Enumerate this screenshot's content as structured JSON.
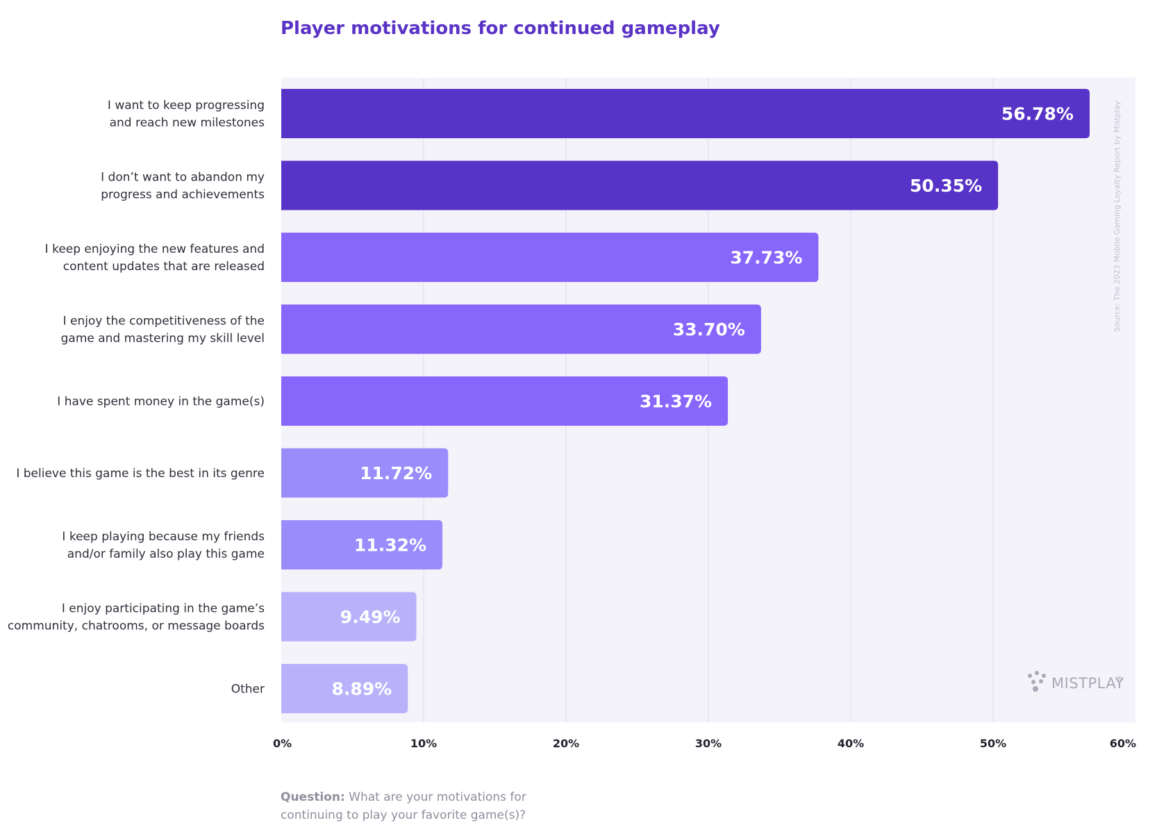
{
  "chart_data": {
    "type": "bar",
    "orientation": "horizontal",
    "title": "Player motivations for continued gameplay",
    "categories": [
      [
        "I want to keep progressing",
        "and reach new milestones"
      ],
      [
        "I don’t want to abandon my",
        "progress and achievements"
      ],
      [
        "I keep enjoying the new features and",
        "content updates that are released"
      ],
      [
        "I enjoy the competitiveness of the",
        "game and mastering my skill level"
      ],
      [
        "I have spent money in the game(s)"
      ],
      [
        "I believe this game is the best in its genre"
      ],
      [
        "I keep playing because my friends",
        "and/or family also play this game"
      ],
      [
        "I enjoy participating in the game’s",
        "community, chatrooms, or message boards"
      ],
      [
        "Other"
      ]
    ],
    "values": [
      56.78,
      50.35,
      37.73,
      33.7,
      31.37,
      11.72,
      11.32,
      9.49,
      8.89
    ],
    "value_labels": [
      "56.78%",
      "50.35%",
      "37.73%",
      "33.70%",
      "31.37%",
      "11.72%",
      "11.32%",
      "9.49%",
      "8.89%"
    ],
    "bar_colors": [
      "#5733c7",
      "#5733c7",
      "#8666fb",
      "#8666fb",
      "#8666fb",
      "#9a8cfb",
      "#9a8cfb",
      "#b9b2fb",
      "#b9b2fb"
    ],
    "xlim": [
      0,
      60
    ],
    "xticks": [
      0,
      10,
      20,
      30,
      40,
      50,
      60
    ],
    "xtick_labels": [
      "0%",
      "10%",
      "20%",
      "30%",
      "40%",
      "50%",
      "60%"
    ],
    "xlabel": "",
    "ylabel": "",
    "grid": true
  },
  "source_note": "Source: The 2023 Mobile Gaming Loyalty Report by Mistplay",
  "logo": {
    "text": "MISTPLAY",
    "registered": "®"
  },
  "question": {
    "label": "Question:",
    "text": " What are your motivations for continuing to play your favorite game(s)?"
  },
  "colors": {
    "title": "#5a33c6",
    "plot_background": "#f4f3fa",
    "gridline": "#dedde9"
  }
}
